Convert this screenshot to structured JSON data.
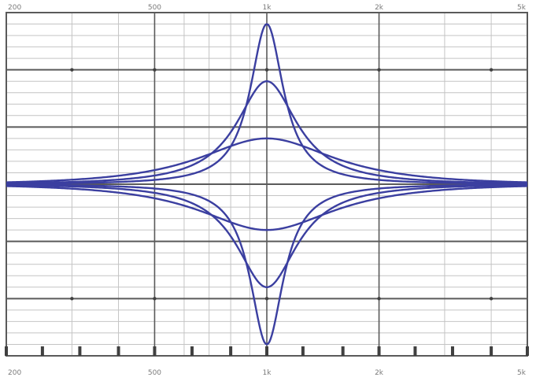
{
  "chart_data": {
    "type": "line",
    "title": "",
    "xlabel": "",
    "ylabel": "",
    "x_scale": "log",
    "xlim": [
      200,
      5000
    ],
    "ylim": [
      -15,
      15
    ],
    "grid": true,
    "top_ticks": [
      {
        "x": 200,
        "label": "200"
      },
      {
        "x": 500,
        "label": "500"
      },
      {
        "x": 1000,
        "label": "1k"
      },
      {
        "x": 2000,
        "label": "2k"
      },
      {
        "x": 5000,
        "label": "5k"
      }
    ],
    "bottom_ticks": [
      {
        "x": 200,
        "label": "200"
      },
      {
        "x": 500,
        "label": "500"
      },
      {
        "x": 1000,
        "label": "1k"
      },
      {
        "x": 2000,
        "label": "2k"
      },
      {
        "x": 5000,
        "label": "5k"
      }
    ],
    "center_frequency": 1000,
    "series": [
      {
        "gain_db": 14,
        "q": 4.0
      },
      {
        "gain_db": 9,
        "q": 2.2
      },
      {
        "gain_db": 4,
        "q": 1.0
      },
      {
        "gain_db": -4,
        "q": 1.0
      },
      {
        "gain_db": -9,
        "q": 2.2
      },
      {
        "gain_db": -14,
        "q": 4.0
      }
    ],
    "line_color": "#3b3fa0",
    "grid_major_color": "#5a5a5a",
    "grid_minor_color": "#c4c4c4",
    "marker_color": "#404040"
  }
}
